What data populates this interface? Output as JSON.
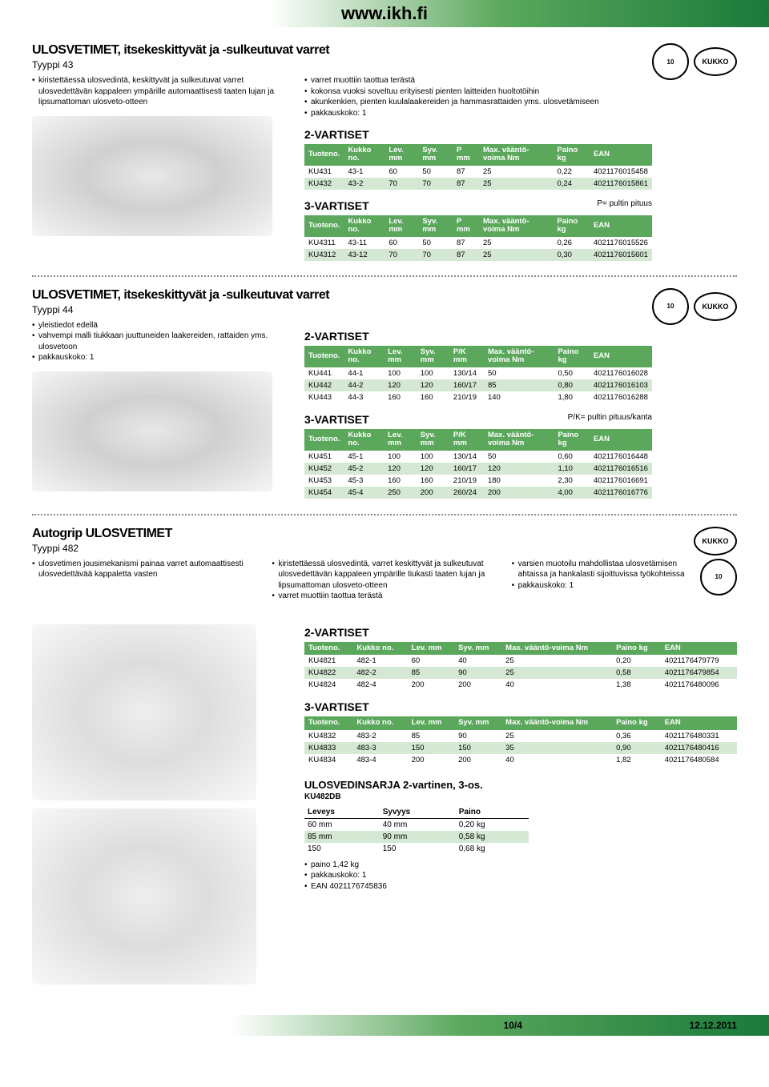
{
  "header": {
    "url": "www.ikh.fi"
  },
  "s1": {
    "title": "ULOSVETIMET, itsekeskittyvät ja -sulkeutuvat varret",
    "type": "Tyyppi 43",
    "bullets_left": [
      "kiristettäessä ulosvedintä, keskittyvät ja sulkeutuvat varret ulosvedettävän kappaleen ympärille automaattisesti taaten lujan ja lipsumattoman ulosveto-otteen"
    ],
    "bullets_right": [
      "varret muottiin taottua terästä",
      "kokonsa vuoksi soveltuu erityisesti pienten laitteiden huoltotöihin",
      "akunkenkien, pienten kuulalaakereiden ja hammasrattaiden yms. ulosvetämiseen",
      "pakkauskoko: 1"
    ],
    "t2": {
      "title": "2-VARTISET",
      "headers": [
        "Tuoteno.",
        "Kukko no.",
        "Lev. mm",
        "Syv. mm",
        "P mm",
        "Max. vääntö-voima Nm",
        "Paino kg",
        "EAN"
      ],
      "rows": [
        [
          "KU431",
          "43-1",
          "60",
          "50",
          "87",
          "25",
          "0,22",
          "4021176015458"
        ],
        [
          "KU432",
          "43-2",
          "70",
          "70",
          "87",
          "25",
          "0,24",
          "4021176015861"
        ]
      ]
    },
    "t3": {
      "title": "3-VARTISET",
      "note": "P= pultin pituus",
      "headers": [
        "Tuoteno.",
        "Kukko no.",
        "Lev. mm",
        "Syv. mm",
        "P mm",
        "Max. vääntö-voima Nm",
        "Paino kg",
        "EAN"
      ],
      "rows": [
        [
          "KU4311",
          "43-11",
          "60",
          "50",
          "87",
          "25",
          "0,26",
          "4021176015526"
        ],
        [
          "KU4312",
          "43-12",
          "70",
          "70",
          "87",
          "25",
          "0,30",
          "4021176015601"
        ]
      ]
    }
  },
  "s2": {
    "title": "ULOSVETIMET, itsekeskittyvät ja -sulkeutuvat varret",
    "type": "Tyyppi 44",
    "bullets": [
      "yleistiedot edellä",
      "vahvempi malli tiukkaan juuttuneiden laakereiden, rattaiden yms. ulosvetoon",
      "pakkauskoko: 1"
    ],
    "t2": {
      "title": "2-VARTISET",
      "headers": [
        "Tuoteno.",
        "Kukko no.",
        "Lev. mm",
        "Syv. mm",
        "P/K mm",
        "Max. vääntö-voima Nm",
        "Paino kg",
        "EAN"
      ],
      "rows": [
        [
          "KU441",
          "44-1",
          "100",
          "100",
          "130/14",
          "50",
          "0,50",
          "4021176016028"
        ],
        [
          "KU442",
          "44-2",
          "120",
          "120",
          "160/17",
          "85",
          "0,80",
          "4021176016103"
        ],
        [
          "KU443",
          "44-3",
          "160",
          "160",
          "210/19",
          "140",
          "1,80",
          "4021176016288"
        ]
      ]
    },
    "t3": {
      "title": "3-VARTISET",
      "note": "P/K= pultin pituus/kanta",
      "headers": [
        "Tuoteno.",
        "Kukko no.",
        "Lev. mm",
        "Syv. mm",
        "P/K mm",
        "Max. vääntö-voima Nm",
        "Paino kg",
        "EAN"
      ],
      "rows": [
        [
          "KU451",
          "45-1",
          "100",
          "100",
          "130/14",
          "50",
          "0,60",
          "4021176016448"
        ],
        [
          "KU452",
          "45-2",
          "120",
          "120",
          "160/17",
          "120",
          "1,10",
          "4021176016516"
        ],
        [
          "KU453",
          "45-3",
          "160",
          "160",
          "210/19",
          "180",
          "2,30",
          "4021176016691"
        ],
        [
          "KU454",
          "45-4",
          "250",
          "200",
          "260/24",
          "200",
          "4,00",
          "4021176016776"
        ]
      ]
    }
  },
  "s3": {
    "title": "Autogrip ULOSVETIMET",
    "type": "Tyyppi 482",
    "col1": [
      "ulosvetimen jousimekanismi painaa varret automaattisesti ulosvedettävää kappaletta vasten"
    ],
    "col2": [
      "kiristettäessä ulosvedintä, varret keskittyvät ja sulkeutuvat ulosvedettävän kappaleen ympärille tiukasti taaten lujan ja lipsumattoman ulosveto-otteen",
      "varret muottiin taottua terästä"
    ],
    "col3": [
      "varsien muotoilu mahdollistaa ulosvetämisen ahtaissa ja hankalasti sijoittuvissa työkohteissa",
      "pakkauskoko: 1"
    ],
    "t2": {
      "title": "2-VARTISET",
      "headers": [
        "Tuoteno.",
        "Kukko no.",
        "Lev. mm",
        "Syv. mm",
        "Max. vääntö-voima Nm",
        "Paino kg",
        "EAN"
      ],
      "rows": [
        [
          "KU4821",
          "482-1",
          "60",
          "40",
          "25",
          "0,20",
          "4021176479779"
        ],
        [
          "KU4822",
          "482-2",
          "85",
          "90",
          "25",
          "0,58",
          "4021176479854"
        ],
        [
          "KU4824",
          "482-4",
          "200",
          "200",
          "40",
          "1,38",
          "4021176480096"
        ]
      ]
    },
    "t3": {
      "title": "3-VARTISET",
      "headers": [
        "Tuoteno.",
        "Kukko no.",
        "Lev. mm",
        "Syv. mm",
        "Max. vääntö-voima Nm",
        "Paino kg",
        "EAN"
      ],
      "rows": [
        [
          "KU4832",
          "483-2",
          "85",
          "90",
          "25",
          "0,36",
          "4021176480331"
        ],
        [
          "KU4833",
          "483-3",
          "150",
          "150",
          "35",
          "0,90",
          "4021176480416"
        ],
        [
          "KU4834",
          "483-4",
          "200",
          "200",
          "40",
          "1,82",
          "4021176480584"
        ]
      ]
    },
    "kit": {
      "title": "ULOSVEDINSARJA 2-vartinen, 3-os.",
      "code": "KU482DB",
      "headers": [
        "Leveys",
        "Syvyys",
        "Paino"
      ],
      "rows": [
        [
          "60 mm",
          "40 mm",
          "0,20 kg"
        ],
        [
          "85 mm",
          "90 mm",
          "0,58 kg"
        ],
        [
          "150",
          "150",
          "0,68 kg"
        ]
      ],
      "extra": [
        "paino 1,42 kg",
        "pakkauskoko: 1",
        "EAN 4021176745836"
      ]
    }
  },
  "footer": {
    "page": "10/4",
    "date": "12.12.2011"
  },
  "badges": {
    "warranty": "10",
    "brand": "KUKKO"
  }
}
